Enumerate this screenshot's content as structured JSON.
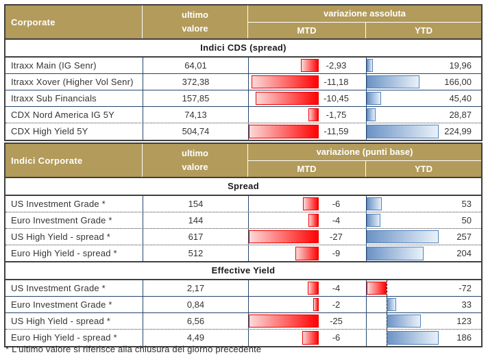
{
  "colors": {
    "header_bg": "#b29b5b",
    "negative_bar": "#ff0000",
    "positive_bar": "#5b84bc"
  },
  "table1": {
    "header": {
      "title": "Corporate",
      "value_line1": "ultimo",
      "value_line2": "valore",
      "group": "variazione assoluta",
      "mtd": "MTD",
      "ytd": "YTD"
    },
    "section": "Indici CDS (spread)",
    "rows": [
      {
        "label": "Itraxx Main (IG Senr)",
        "value": "64,01",
        "mtd": "-2,93",
        "ytd": "19,96",
        "sep": "solid"
      },
      {
        "label": "Itraxx Xover (Higher Vol Senr)",
        "value": "372,38",
        "mtd": "-11,18",
        "ytd": "166,00",
        "sep": "solid"
      },
      {
        "label": "Itraxx Sub Financials",
        "value": "157,85",
        "mtd": "-10,45",
        "ytd": "45,40",
        "sep": "solid"
      },
      {
        "label": "CDX Nord America IG 5Y",
        "value": "74,13",
        "mtd": "-1,75",
        "ytd": "28,87",
        "sep": "dotted"
      },
      {
        "label": "CDX High Yield 5Y",
        "value": "504,74",
        "mtd": "-11,59",
        "ytd": "224,99",
        "sep": "none"
      }
    ]
  },
  "table2": {
    "header": {
      "title": "Indici Corporate",
      "value_line1": "ultimo",
      "value_line2": "valore",
      "group": "variazione (punti base)",
      "mtd": "MTD",
      "ytd": "YTD"
    },
    "sections": [
      {
        "title": "Spread",
        "rows": [
          {
            "label": "US Investment Grade *",
            "value": "154",
            "mtd": "-6",
            "ytd": "53",
            "sep": "dotted"
          },
          {
            "label": "Euro Investment Grade *",
            "value": "144",
            "mtd": "-4",
            "ytd": "50",
            "sep": "dotted"
          },
          {
            "label": "US High Yield  - spread *",
            "value": "617",
            "mtd": "-27",
            "ytd": "257",
            "sep": "dotted"
          },
          {
            "label": "Euro High Yield  - spread *",
            "value": "512",
            "mtd": "-9",
            "ytd": "204",
            "sep": "none"
          }
        ]
      },
      {
        "title": "Effective Yield",
        "rows": [
          {
            "label": "US Investment Grade *",
            "value": "2,17",
            "mtd": "-4",
            "ytd": "-72",
            "sep": "solid"
          },
          {
            "label": "Euro Investment Grade *",
            "value": "0,84",
            "mtd": "-2",
            "ytd": "33",
            "sep": "solid"
          },
          {
            "label": "US High Yield  - spread *",
            "value": "6,56",
            "mtd": "-25",
            "ytd": "123",
            "sep": "dotted"
          },
          {
            "label": "Euro High Yield  - spread *",
            "value": "4,49",
            "mtd": "-6",
            "ytd": "186",
            "sep": "none"
          }
        ]
      }
    ]
  },
  "footnote": "* L'ultimo valore si riferisce alla chiusura del giorno precedente",
  "chart_data": [
    {
      "type": "table",
      "title": "Indici CDS (spread)",
      "columns": [
        "ultimo valore",
        "variazione assoluta MTD",
        "variazione assoluta YTD"
      ],
      "rows": [
        {
          "name": "Itraxx Main (IG Senr)",
          "ultimo": 64.01,
          "mtd": -2.93,
          "ytd": 19.96
        },
        {
          "name": "Itraxx Xover (Higher Vol Senr)",
          "ultimo": 372.38,
          "mtd": -11.18,
          "ytd": 166.0
        },
        {
          "name": "Itraxx Sub Financials",
          "ultimo": 157.85,
          "mtd": -10.45,
          "ytd": 45.4
        },
        {
          "name": "CDX Nord America IG 5Y",
          "ultimo": 74.13,
          "mtd": -1.75,
          "ytd": 28.87
        },
        {
          "name": "CDX High Yield 5Y",
          "ultimo": 504.74,
          "mtd": -11.59,
          "ytd": 224.99
        }
      ]
    },
    {
      "type": "table",
      "title": "Indici Corporate - Spread (variazione punti base)",
      "rows": [
        {
          "name": "US Investment Grade",
          "ultimo": 154,
          "mtd": -6,
          "ytd": 53
        },
        {
          "name": "Euro Investment Grade",
          "ultimo": 144,
          "mtd": -4,
          "ytd": 50
        },
        {
          "name": "US High Yield - spread",
          "ultimo": 617,
          "mtd": -27,
          "ytd": 257
        },
        {
          "name": "Euro High Yield - spread",
          "ultimo": 512,
          "mtd": -9,
          "ytd": 204
        }
      ]
    },
    {
      "type": "table",
      "title": "Indici Corporate - Effective Yield (variazione punti base)",
      "rows": [
        {
          "name": "US Investment Grade",
          "ultimo": 2.17,
          "mtd": -4,
          "ytd": -72
        },
        {
          "name": "Euro Investment Grade",
          "ultimo": 0.84,
          "mtd": -2,
          "ytd": 33
        },
        {
          "name": "US High Yield - spread",
          "ultimo": 6.56,
          "mtd": -25,
          "ytd": 123
        },
        {
          "name": "Euro High Yield - spread",
          "ultimo": 4.49,
          "mtd": -6,
          "ytd": 186
        }
      ]
    }
  ]
}
